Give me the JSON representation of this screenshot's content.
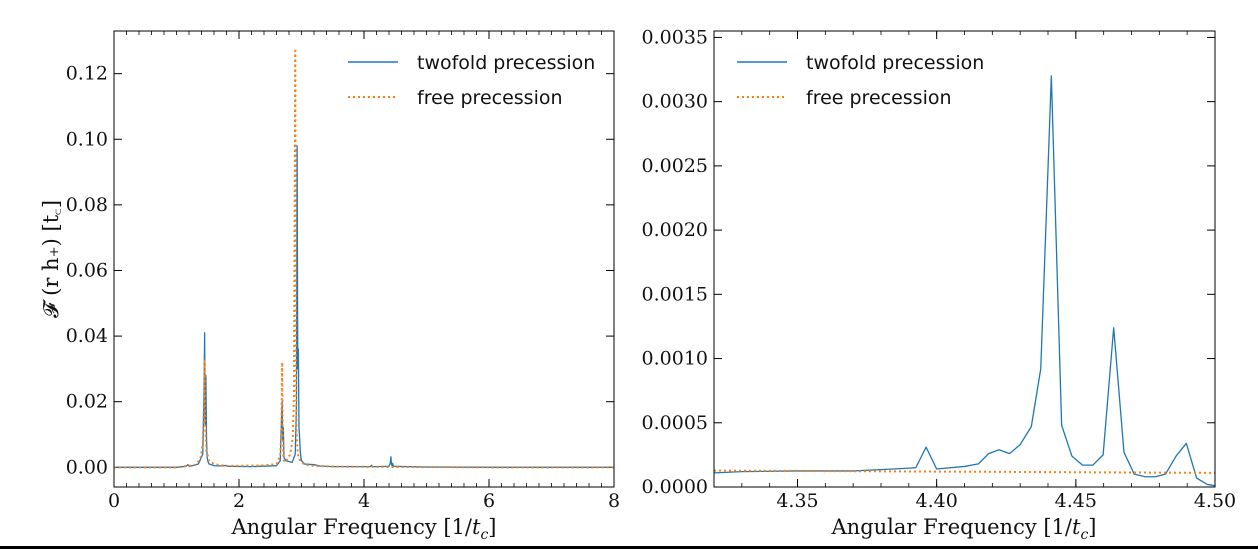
{
  "chart_data": [
    {
      "type": "line",
      "ylabel": "𝓕 (r h₊) [t꜀]",
      "xlabel_main": "Angular Frequency [1/",
      "xlabel_var": "t",
      "xlabel_sub": "c",
      "xlabel_end": "]",
      "xlim": [
        0,
        8
      ],
      "ylim": [
        -0.006,
        0.133
      ],
      "xticks": [
        0,
        2,
        4,
        6,
        8
      ],
      "xtick_labels": [
        "0",
        "2",
        "4",
        "6",
        "8"
      ],
      "yticks": [
        0.0,
        0.02,
        0.04,
        0.06,
        0.08,
        0.1,
        0.12
      ],
      "ytick_labels": [
        "0.00",
        "0.02",
        "0.04",
        "0.06",
        "0.08",
        "0.10",
        "0.12"
      ],
      "legend": [
        "twofold precession",
        "free precession"
      ],
      "legend_position": "top-right",
      "series": [
        {
          "name": "twofold precession",
          "color": "#1f77b4",
          "style": "solid",
          "x": [
            0.0,
            1.0,
            1.15,
            1.18,
            1.21,
            1.35,
            1.42,
            1.44,
            1.45,
            1.46,
            1.47,
            1.48,
            1.49,
            1.5,
            1.52,
            1.6,
            1.75,
            1.78,
            1.82,
            2.2,
            2.6,
            2.66,
            2.68,
            2.69,
            2.7,
            2.71,
            2.72,
            2.75,
            2.85,
            2.9,
            2.92,
            2.93,
            2.94,
            2.95,
            2.96,
            2.97,
            2.98,
            2.99,
            3.0,
            3.05,
            3.2,
            3.3,
            3.5,
            4.1,
            4.12,
            4.14,
            4.4,
            4.42,
            4.43,
            4.44,
            4.45,
            4.46,
            4.47,
            5.0,
            6.0,
            7.0,
            8.0
          ],
          "y": [
            0.0,
            0.0,
            0.0003,
            0.0008,
            0.0003,
            0.001,
            0.004,
            0.022,
            0.041,
            0.013,
            0.028,
            0.009,
            0.003,
            0.002,
            0.001,
            0.0005,
            0.0004,
            0.0006,
            0.0003,
            0.0002,
            0.0005,
            0.002,
            0.015,
            0.02,
            0.008,
            0.012,
            0.003,
            0.002,
            0.0015,
            0.004,
            0.02,
            0.098,
            0.03,
            0.036,
            0.012,
            0.009,
            0.005,
            0.003,
            0.002,
            0.001,
            0.0008,
            0.0004,
            0.0002,
            0.0002,
            0.0006,
            0.0002,
            0.0003,
            0.0012,
            0.0032,
            0.001,
            0.0004,
            0.0012,
            0.0003,
            0.0001,
            0.0,
            0.0,
            0.0
          ]
        },
        {
          "name": "free precession",
          "color": "#ff7f0e",
          "style": "dotted",
          "x": [
            0.0,
            1.0,
            1.3,
            1.38,
            1.42,
            1.44,
            1.45,
            1.46,
            1.48,
            1.52,
            1.6,
            1.8,
            2.4,
            2.6,
            2.66,
            2.68,
            2.69,
            2.7,
            2.71,
            2.72,
            2.74,
            2.78,
            2.82,
            2.86,
            2.88,
            2.89,
            2.9,
            2.91,
            2.92,
            2.94,
            2.98,
            3.05,
            3.2,
            3.6,
            4.5,
            6.0,
            8.0
          ],
          "y": [
            0.0,
            0.0,
            0.0007,
            0.0025,
            0.007,
            0.02,
            0.033,
            0.012,
            0.005,
            0.002,
            0.001,
            0.0004,
            0.0006,
            0.001,
            0.0035,
            0.012,
            0.032,
            0.012,
            0.003,
            0.0017,
            0.0017,
            0.0025,
            0.004,
            0.009,
            0.022,
            0.075,
            0.127,
            0.035,
            0.012,
            0.004,
            0.0018,
            0.0008,
            0.0004,
            0.0002,
            0.0001,
            0.0,
            0.0
          ]
        }
      ]
    },
    {
      "type": "line",
      "xlabel_main": "Angular Frequency [1/",
      "xlabel_var": "t",
      "xlabel_sub": "c",
      "xlabel_end": "]",
      "xlim": [
        4.32,
        4.5
      ],
      "ylim": [
        0.0,
        0.00355
      ],
      "xticks": [
        4.35,
        4.4,
        4.45,
        4.5
      ],
      "xtick_labels": [
        "4.35",
        "4.40",
        "4.45",
        "4.50"
      ],
      "yticks": [
        0.0,
        0.0005,
        0.001,
        0.0015,
        0.002,
        0.0025,
        0.003,
        0.0035
      ],
      "ytick_labels": [
        "0.0000",
        "0.0005",
        "0.0010",
        "0.0015",
        "0.0020",
        "0.0025",
        "0.0030",
        "0.0035"
      ],
      "legend": [
        "twofold precession",
        "free precession"
      ],
      "legend_position": "top-left",
      "series": [
        {
          "name": "twofold precession",
          "color": "#1f77b4",
          "style": "solid",
          "x": [
            4.32,
            4.33,
            4.35,
            4.37,
            4.38,
            4.3925,
            4.3962,
            4.4,
            4.41,
            4.415,
            4.4187,
            4.4224,
            4.4262,
            4.43,
            4.434,
            4.4374,
            4.4412,
            4.4449,
            4.4486,
            4.4524,
            4.4561,
            4.4598,
            4.4636,
            4.4673,
            4.471,
            4.4748,
            4.4785,
            4.4822,
            4.486,
            4.4897,
            4.4934,
            4.4972,
            4.5
          ],
          "y": [
            0.00011,
            0.00012,
            0.000125,
            0.000125,
            0.000135,
            0.00015,
            0.00031,
            0.00014,
            0.00016,
            0.00018,
            0.00026,
            0.00029,
            0.00026,
            0.00033,
            0.00047,
            0.00092,
            0.0032,
            0.00048,
            0.00024,
            0.00017,
            0.00017,
            0.00025,
            0.00124,
            0.00027,
            0.0001,
            8e-05,
            8e-05,
            0.0001,
            0.00024,
            0.00034,
            7e-05,
            2e-05,
            1e-05
          ]
        },
        {
          "name": "free precession",
          "color": "#ff7f0e",
          "style": "dotted",
          "x": [
            4.32,
            4.35,
            4.38,
            4.41,
            4.44,
            4.47,
            4.5
          ],
          "y": [
            0.000128,
            0.000125,
            0.000122,
            0.000119,
            0.000116,
            0.000113,
            0.00011
          ]
        }
      ]
    }
  ]
}
